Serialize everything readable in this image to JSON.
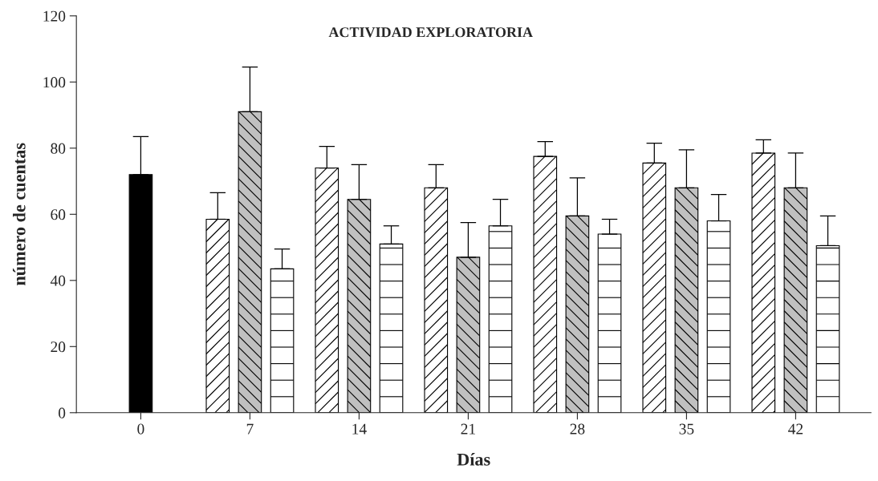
{
  "chart_data": {
    "type": "bar",
    "title": "ACTIVIDAD EXPLORATORIA",
    "xlabel": "Días",
    "ylabel": "número de cuentas",
    "categories": [
      "0",
      "7",
      "14",
      "21",
      "28",
      "35",
      "42"
    ],
    "series": [
      {
        "color": "#000000",
        "values": [
          72,
          null,
          null,
          null,
          null,
          null,
          null
        ],
        "errors": [
          [
            72,
            83.5
          ],
          null,
          null,
          null,
          null,
          null,
          null
        ]
      },
      {
        "color": "#ffffff",
        "values": [
          null,
          58.5,
          74,
          68,
          77.5,
          75.5,
          78.5
        ],
        "errors": [
          null,
          [
            58.5,
            66.5
          ],
          [
            74,
            80.5
          ],
          [
            68,
            75
          ],
          [
            77.5,
            82
          ],
          [
            75.5,
            81.5
          ],
          [
            78.5,
            82.5
          ]
        ]
      },
      {
        "color": "#c0c0c0",
        "values": [
          null,
          91,
          64.5,
          47,
          59.5,
          68,
          68
        ],
        "errors": [
          null,
          [
            91,
            104.5
          ],
          [
            64.5,
            75
          ],
          [
            47,
            57.5
          ],
          [
            59.5,
            71
          ],
          [
            68,
            79.5
          ],
          [
            68,
            78.5
          ]
        ]
      },
      {
        "color": "#ffffff",
        "values": [
          null,
          43.5,
          51,
          56.5,
          54,
          58,
          50.5
        ],
        "errors": [
          null,
          [
            43.5,
            49.5
          ],
          [
            51,
            56.5
          ],
          [
            56.5,
            64.5
          ],
          [
            54,
            58.5
          ],
          [
            58,
            66
          ],
          [
            50.5,
            59.5
          ]
        ]
      }
    ],
    "ylim": [
      0,
      120
    ],
    "yticks": [
      0,
      20,
      40,
      60,
      80,
      100,
      120
    ],
    "grid": false,
    "legend": false
  }
}
